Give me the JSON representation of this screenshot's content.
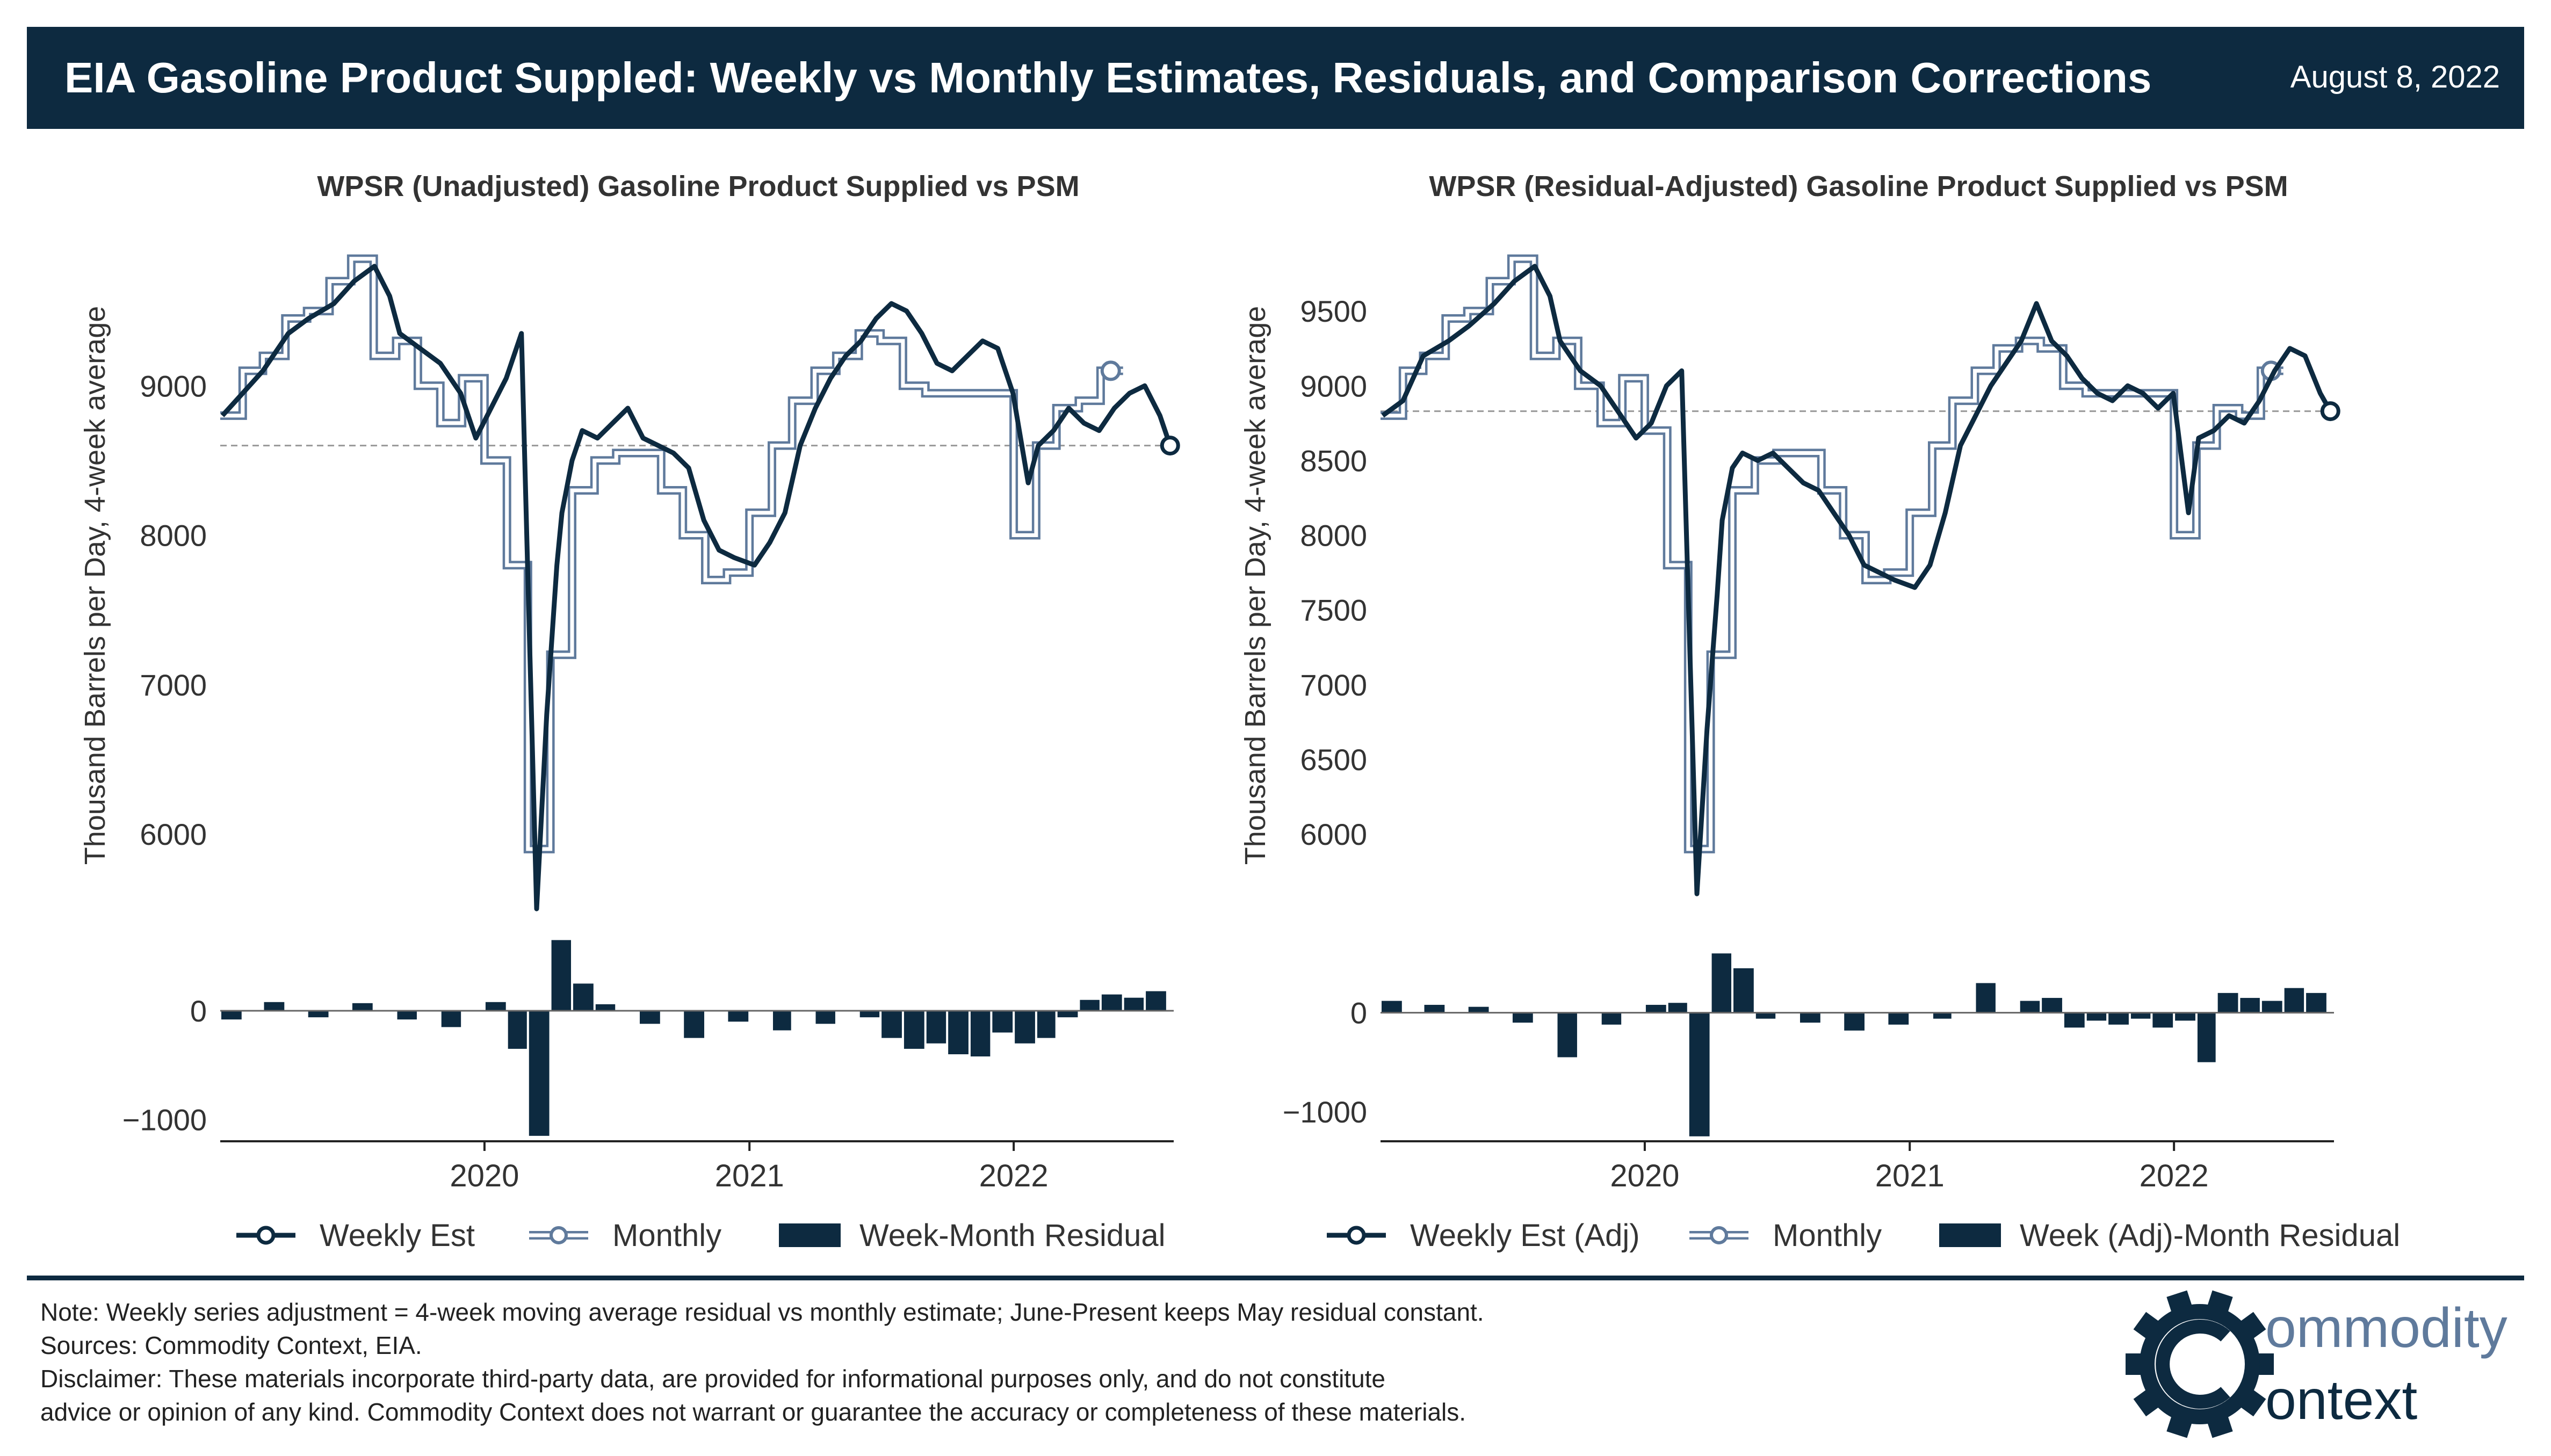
{
  "header": {
    "title": "EIA Gasoline Product Suppled: Weekly vs Monthly Estimates, Residuals, and Comparison Corrections",
    "date": "August 8, 2022"
  },
  "colors": {
    "weekly": "#0d2a40",
    "monthly_outline": "#5f7a9c",
    "monthly_fill": "#ffffff",
    "residual": "#0d2a40",
    "reference": "#999999"
  },
  "chart_data": [
    {
      "type": "line",
      "title": "WPSR (Unadjusted) Gasoline Product Supplied vs PSM",
      "ylabel": "Thousand Barrels per Day, 4-week average",
      "x_range": [
        "2019-01-01",
        "2022-08-10"
      ],
      "ylim": [
        5400,
        10000
      ],
      "yticks": [
        6000,
        7000,
        8000,
        9000
      ],
      "residual_ylim": [
        -1200,
        800
      ],
      "residual_yticks": [
        0,
        -1000
      ],
      "xticks": [
        "2020",
        "2021",
        "2022"
      ],
      "reference_line": 8600,
      "legend": [
        "Weekly Est",
        "Monthly",
        "Week-Month Residual"
      ],
      "monthly": {
        "name": "Monthly",
        "months": [
          "2019-01",
          "2019-02",
          "2019-03",
          "2019-04",
          "2019-05",
          "2019-06",
          "2019-07",
          "2019-08",
          "2019-09",
          "2019-10",
          "2019-11",
          "2019-12",
          "2020-01",
          "2020-02",
          "2020-03",
          "2020-04",
          "2020-05",
          "2020-06",
          "2020-07",
          "2020-08",
          "2020-09",
          "2020-10",
          "2020-11",
          "2020-12",
          "2021-01",
          "2021-02",
          "2021-03",
          "2021-04",
          "2021-05",
          "2021-06",
          "2021-07",
          "2021-08",
          "2021-09",
          "2021-10",
          "2021-11",
          "2021-12",
          "2022-01",
          "2022-02",
          "2022-03",
          "2022-04",
          "2022-05"
        ],
        "values": [
          8800,
          9100,
          9200,
          9450,
          9500,
          9700,
          9850,
          9200,
          9300,
          9000,
          8750,
          9050,
          8500,
          7800,
          5900,
          7200,
          8300,
          8500,
          8550,
          8550,
          8300,
          8000,
          7700,
          7750,
          8150,
          8600,
          8900,
          9100,
          9200,
          9350,
          9300,
          9000,
          8950,
          8950,
          8950,
          8950,
          8000,
          8600,
          8850,
          8900,
          9100
        ]
      },
      "weekly": {
        "name": "Weekly Est",
        "x": [
          "2019-01-04",
          "2019-02-01",
          "2019-03-01",
          "2019-04-05",
          "2019-05-03",
          "2019-06-07",
          "2019-07-05",
          "2019-08-02",
          "2019-08-23",
          "2019-09-06",
          "2019-10-04",
          "2019-11-01",
          "2019-11-29",
          "2019-12-20",
          "2020-01-10",
          "2020-01-31",
          "2020-02-21",
          "2020-03-13",
          "2020-03-27",
          "2020-04-10",
          "2020-04-17",
          "2020-05-01",
          "2020-05-15",
          "2020-06-05",
          "2020-06-26",
          "2020-07-17",
          "2020-08-07",
          "2020-08-28",
          "2020-09-18",
          "2020-10-09",
          "2020-10-30",
          "2020-11-20",
          "2020-12-11",
          "2021-01-08",
          "2021-01-29",
          "2021-02-19",
          "2021-03-12",
          "2021-04-02",
          "2021-04-23",
          "2021-05-14",
          "2021-06-04",
          "2021-06-25",
          "2021-07-16",
          "2021-08-06",
          "2021-08-27",
          "2021-09-17",
          "2021-10-08",
          "2021-10-29",
          "2021-11-19",
          "2021-12-10",
          "2021-12-31",
          "2022-01-21",
          "2022-02-04",
          "2022-02-25",
          "2022-03-18",
          "2022-04-08",
          "2022-04-29",
          "2022-05-20",
          "2022-06-10",
          "2022-07-01",
          "2022-07-22",
          "2022-08-05"
        ],
        "values": [
          8800,
          8950,
          9100,
          9350,
          9450,
          9550,
          9700,
          9800,
          9600,
          9350,
          9250,
          9150,
          8950,
          8650,
          8850,
          9050,
          9350,
          5500,
          6800,
          7800,
          8150,
          8500,
          8700,
          8650,
          8750,
          8850,
          8650,
          8600,
          8550,
          8450,
          8100,
          7900,
          7850,
          7800,
          7950,
          8150,
          8600,
          8850,
          9050,
          9200,
          9300,
          9450,
          9550,
          9500,
          9350,
          9150,
          9100,
          9200,
          9300,
          9250,
          8950,
          8350,
          8600,
          8700,
          8850,
          8750,
          8700,
          8850,
          8950,
          9000,
          8800,
          8600
        ]
      },
      "residual": {
        "name": "Week-Month Residual",
        "x": [
          "2019-01",
          "2019-03",
          "2019-05",
          "2019-07",
          "2019-09",
          "2019-11",
          "2020-01",
          "2020-02",
          "2020-03",
          "2020-04",
          "2020-05",
          "2020-06",
          "2020-08",
          "2020-10",
          "2020-12",
          "2021-02",
          "2021-04",
          "2021-06",
          "2021-07",
          "2021-08",
          "2021-09",
          "2021-10",
          "2021-11",
          "2021-12",
          "2022-01",
          "2022-02",
          "2022-03",
          "2022-04",
          "2022-05",
          "2022-06",
          "2022-07"
        ],
        "values": [
          -80,
          80,
          -60,
          70,
          -80,
          -150,
          80,
          -350,
          -1150,
          650,
          250,
          60,
          -120,
          -250,
          -100,
          -180,
          -120,
          -60,
          -250,
          -350,
          -300,
          -400,
          -420,
          -200,
          -300,
          -250,
          -60,
          100,
          150,
          120,
          180
        ]
      }
    },
    {
      "type": "line",
      "title": "WPSR (Residual-Adjusted) Gasoline Product Supplied vs PSM",
      "ylabel": "Thousand Barrels per Day, 4-week average",
      "x_range": [
        "2019-01-01",
        "2022-08-10"
      ],
      "ylim": [
        5400,
        10000
      ],
      "yticks": [
        6000,
        6500,
        7000,
        7500,
        8000,
        8500,
        9000,
        9500
      ],
      "residual_ylim": [
        -1300,
        900
      ],
      "residual_yticks": [
        0,
        -1000
      ],
      "xticks": [
        "2020",
        "2021",
        "2022"
      ],
      "reference_line": 8830,
      "legend": [
        "Weekly Est (Adj)",
        "Monthly",
        "Week (Adj)-Month Residual"
      ],
      "weekly": {
        "name": "Weekly Est (Adj)",
        "x": [
          "2019-01-04",
          "2019-02-01",
          "2019-03-01",
          "2019-04-05",
          "2019-05-03",
          "2019-06-07",
          "2019-07-05",
          "2019-08-02",
          "2019-08-23",
          "2019-09-06",
          "2019-10-04",
          "2019-11-01",
          "2019-11-29",
          "2019-12-20",
          "2020-01-10",
          "2020-01-31",
          "2020-02-21",
          "2020-03-13",
          "2020-03-27",
          "2020-04-10",
          "2020-04-17",
          "2020-05-01",
          "2020-05-15",
          "2020-06-05",
          "2020-06-26",
          "2020-07-17",
          "2020-08-07",
          "2020-08-28",
          "2020-09-18",
          "2020-10-09",
          "2020-10-30",
          "2020-11-20",
          "2020-12-11",
          "2021-01-08",
          "2021-01-29",
          "2021-02-19",
          "2021-03-12",
          "2021-04-02",
          "2021-04-23",
          "2021-05-14",
          "2021-06-04",
          "2021-06-25",
          "2021-07-16",
          "2021-08-06",
          "2021-08-27",
          "2021-09-17",
          "2021-10-08",
          "2021-10-29",
          "2021-11-19",
          "2021-12-10",
          "2021-12-31",
          "2022-01-21",
          "2022-02-04",
          "2022-02-25",
          "2022-03-18",
          "2022-04-08",
          "2022-04-29",
          "2022-05-20",
          "2022-06-10",
          "2022-07-01",
          "2022-07-22",
          "2022-08-05"
        ],
        "values": [
          8800,
          8900,
          9200,
          9300,
          9400,
          9550,
          9700,
          9800,
          9600,
          9300,
          9100,
          9000,
          8800,
          8650,
          8750,
          9000,
          9100,
          5600,
          6700,
          7600,
          8100,
          8450,
          8550,
          8500,
          8550,
          8450,
          8350,
          8300,
          8150,
          8000,
          7800,
          7750,
          7700,
          7650,
          7800,
          8150,
          8600,
          8800,
          9000,
          9150,
          9300,
          9550,
          9300,
          9200,
          9050,
          8950,
          8900,
          9000,
          8950,
          8850,
          8950,
          8150,
          8650,
          8700,
          8800,
          8750,
          8900,
          9100,
          9250,
          9200,
          8950,
          8830
        ]
      },
      "monthly": {
        "name": "Monthly",
        "months": [
          "2019-01",
          "2019-02",
          "2019-03",
          "2019-04",
          "2019-05",
          "2019-06",
          "2019-07",
          "2019-08",
          "2019-09",
          "2019-10",
          "2019-11",
          "2019-12",
          "2020-01",
          "2020-02",
          "2020-03",
          "2020-04",
          "2020-05",
          "2020-06",
          "2020-07",
          "2020-08",
          "2020-09",
          "2020-10",
          "2020-11",
          "2020-12",
          "2021-01",
          "2021-02",
          "2021-03",
          "2021-04",
          "2021-05",
          "2021-06",
          "2021-07",
          "2021-08",
          "2021-09",
          "2021-10",
          "2021-11",
          "2021-12",
          "2022-01",
          "2022-02",
          "2022-03",
          "2022-04",
          "2022-05"
        ],
        "values": [
          8800,
          9100,
          9200,
          9450,
          9500,
          9700,
          9850,
          9200,
          9300,
          9000,
          8750,
          9050,
          8700,
          7800,
          5900,
          7200,
          8300,
          8500,
          8550,
          8550,
          8300,
          8000,
          7700,
          7750,
          8150,
          8600,
          8900,
          9100,
          9250,
          9300,
          9250,
          9000,
          8950,
          8950,
          8950,
          8950,
          8000,
          8600,
          8850,
          8800,
          9100
        ]
      },
      "residual": {
        "name": "Week (Adj)-Month Residual",
        "x": [
          "2019-01",
          "2019-03",
          "2019-05",
          "2019-07",
          "2019-09",
          "2019-11",
          "2020-01",
          "2020-02",
          "2020-03",
          "2020-04",
          "2020-05",
          "2020-06",
          "2020-08",
          "2020-10",
          "2020-12",
          "2021-02",
          "2021-04",
          "2021-06",
          "2021-07",
          "2021-08",
          "2021-09",
          "2021-10",
          "2021-11",
          "2021-12",
          "2022-01",
          "2022-02",
          "2022-03",
          "2022-04",
          "2022-05",
          "2022-06",
          "2022-07"
        ],
        "values": [
          120,
          80,
          60,
          -100,
          -450,
          -120,
          80,
          100,
          -1250,
          600,
          450,
          -60,
          -100,
          -180,
          -120,
          -60,
          300,
          120,
          150,
          -150,
          -80,
          -120,
          -60,
          -150,
          -80,
          -500,
          200,
          150,
          120,
          250,
          200
        ]
      }
    }
  ],
  "footer": {
    "note": "Note: Weekly series adjustment = 4-week moving average residual vs monthly estimate; June-Present keeps May residual constant.",
    "sources": "Sources: Commodity Context, EIA.",
    "disclaimer_1": "Disclaimer: These materials incorporate third-party data, are provided for informational purposes only, and do not constitute",
    "disclaimer_2": "advice or opinion of any kind. Commodity Context does not warrant or guarantee the accuracy or completeness of these materials.",
    "logo_line1": "ommodity",
    "logo_line2": "ontext",
    "logo_letter": "C"
  }
}
